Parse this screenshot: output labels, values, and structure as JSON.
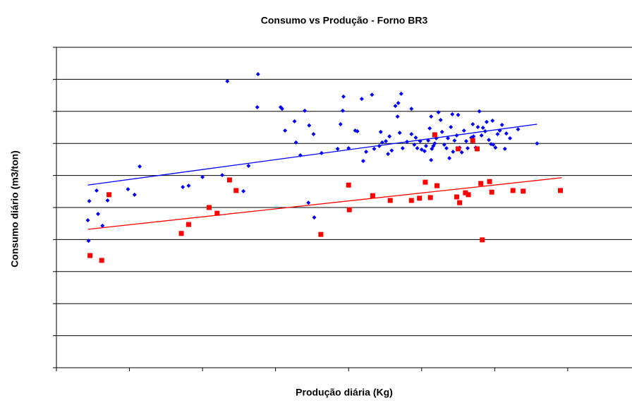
{
  "chart_data": {
    "type": "scatter",
    "title": "Consumo vs Produção - Forno BR3",
    "xlabel": "Produção diária (Kg)",
    "ylabel": "Consumo diário (m3/ton)",
    "xlim": [
      0,
      78.8
    ],
    "xticks": [
      0,
      10,
      20,
      30,
      40,
      50,
      60,
      70
    ],
    "ylim": [
      0,
      100
    ],
    "yticks": [
      0,
      10,
      20,
      30,
      40,
      50,
      60,
      70,
      80,
      90,
      100
    ],
    "grid": true,
    "series": [
      {
        "color": "#0000ff",
        "marker": "diamond",
        "x": [
          4.3,
          4.5,
          5.5,
          5.7,
          6.3,
          7.0,
          4.4,
          9.8,
          10.7,
          11.4,
          17.3,
          18.1,
          18.0,
          20.0,
          22.7,
          23.4,
          25.6,
          26.3,
          27.6,
          27.5,
          30.7,
          30.9,
          31.3,
          32.6,
          32.8,
          34.0,
          34.6,
          35.2,
          33.4,
          34.5,
          35.3,
          36.3,
          38.5,
          38.9,
          39.3,
          39.2,
          40.0,
          40.9,
          41.2,
          41.8,
          42.0,
          42.4,
          43.2,
          43.5,
          44.2,
          44.4,
          44.6,
          45.1,
          45.4,
          45.6,
          45.9,
          46.4,
          46.7,
          46.8,
          47.2,
          47.0,
          47.4,
          48.0,
          48.6,
          48.6,
          49.0,
          49.2,
          49.4,
          49.8,
          50.0,
          50.4,
          50.6,
          50.9,
          51.1,
          51.3,
          51.3,
          51.4,
          51.6,
          51.8,
          52.0,
          52.3,
          52.6,
          52.8,
          53.1,
          53.4,
          53.6,
          53.8,
          54.0,
          54.2,
          54.3,
          54.5,
          54.8,
          55.0,
          55.2,
          55.5,
          55.8,
          56.1,
          56.3,
          56.8,
          57.0,
          57.1,
          57.4,
          57.7,
          57.9,
          58.2,
          58.4,
          58.7,
          58.9,
          59.2,
          59.5,
          59.7,
          59.8,
          60.1,
          60.4,
          60.7,
          61.0,
          61.4,
          61.6,
          62.1,
          63.2,
          65.8
        ],
        "values": [
          46.0,
          52.0,
          55.3,
          48.0,
          44.3,
          52.2,
          39.6,
          55.7,
          54.0,
          62.8,
          56.4,
          56.8,
          44.7,
          59.5,
          60.1,
          89.4,
          55.1,
          63.0,
          91.6,
          81.3,
          81.3,
          80.8,
          74.0,
          76.9,
          70.3,
          80.2,
          75.6,
          72.9,
          66.3,
          51.5,
          46.9,
          67.0,
          68.3,
          76.0,
          84.6,
          80.2,
          68.5,
          74.0,
          73.8,
          83.9,
          64.5,
          67.4,
          85.2,
          68.3,
          69.2,
          73.6,
          70.3,
          70.7,
          66.7,
          72.2,
          67.8,
          81.7,
          78.4,
          82.6,
          85.5,
          73.3,
          68.5,
          70.5,
          80.8,
          72.9,
          69.6,
          71.8,
          68.5,
          70.7,
          68.1,
          67.6,
          69.2,
          70.9,
          74.7,
          78.4,
          64.8,
          68.3,
          69.2,
          70.0,
          71.6,
          79.7,
          77.3,
          73.6,
          69.6,
          68.5,
          71.6,
          65.4,
          75.1,
          79.1,
          67.4,
          70.9,
          72.5,
          78.9,
          68.7,
          67.2,
          74.0,
          70.7,
          68.5,
          71.8,
          76.0,
          72.2,
          68.7,
          75.1,
          80.0,
          72.5,
          74.9,
          73.8,
          76.7,
          71.1,
          69.8,
          77.1,
          69.6,
          68.7,
          72.9,
          74.0,
          75.8,
          68.3,
          73.1,
          71.6,
          74.4,
          70.0
        ],
        "trendline": {
          "x": [
            4.3,
            65.8
          ],
          "y": [
            57.0,
            76.0
          ]
        }
      },
      {
        "color": "#ff0000",
        "marker": "square",
        "x": [
          4.6,
          6.2,
          7.2,
          17.1,
          18.1,
          20.9,
          22.0,
          23.7,
          24.6,
          36.2,
          40.0,
          40.1,
          43.3,
          45.7,
          48.6,
          49.7,
          50.5,
          51.2,
          51.8,
          52.1,
          54.8,
          55.0,
          55.2,
          56.0,
          56.4,
          57.0,
          57.6,
          58.1,
          58.3,
          59.3,
          59.6,
          62.5,
          63.9,
          69.0
        ],
        "values": [
          35.0,
          33.5,
          54.0,
          41.9,
          44.7,
          50.0,
          48.2,
          58.6,
          55.3,
          41.6,
          57.0,
          49.3,
          53.7,
          52.2,
          52.2,
          52.9,
          57.9,
          53.1,
          72.7,
          56.8,
          53.3,
          68.3,
          51.5,
          54.6,
          54.0,
          70.9,
          68.3,
          57.5,
          39.9,
          58.1,
          54.8,
          55.3,
          55.1,
          55.3
        ],
        "trendline": {
          "x": [
            4.3,
            69.2
          ],
          "y": [
            43.2,
            59.3
          ]
        }
      }
    ]
  }
}
